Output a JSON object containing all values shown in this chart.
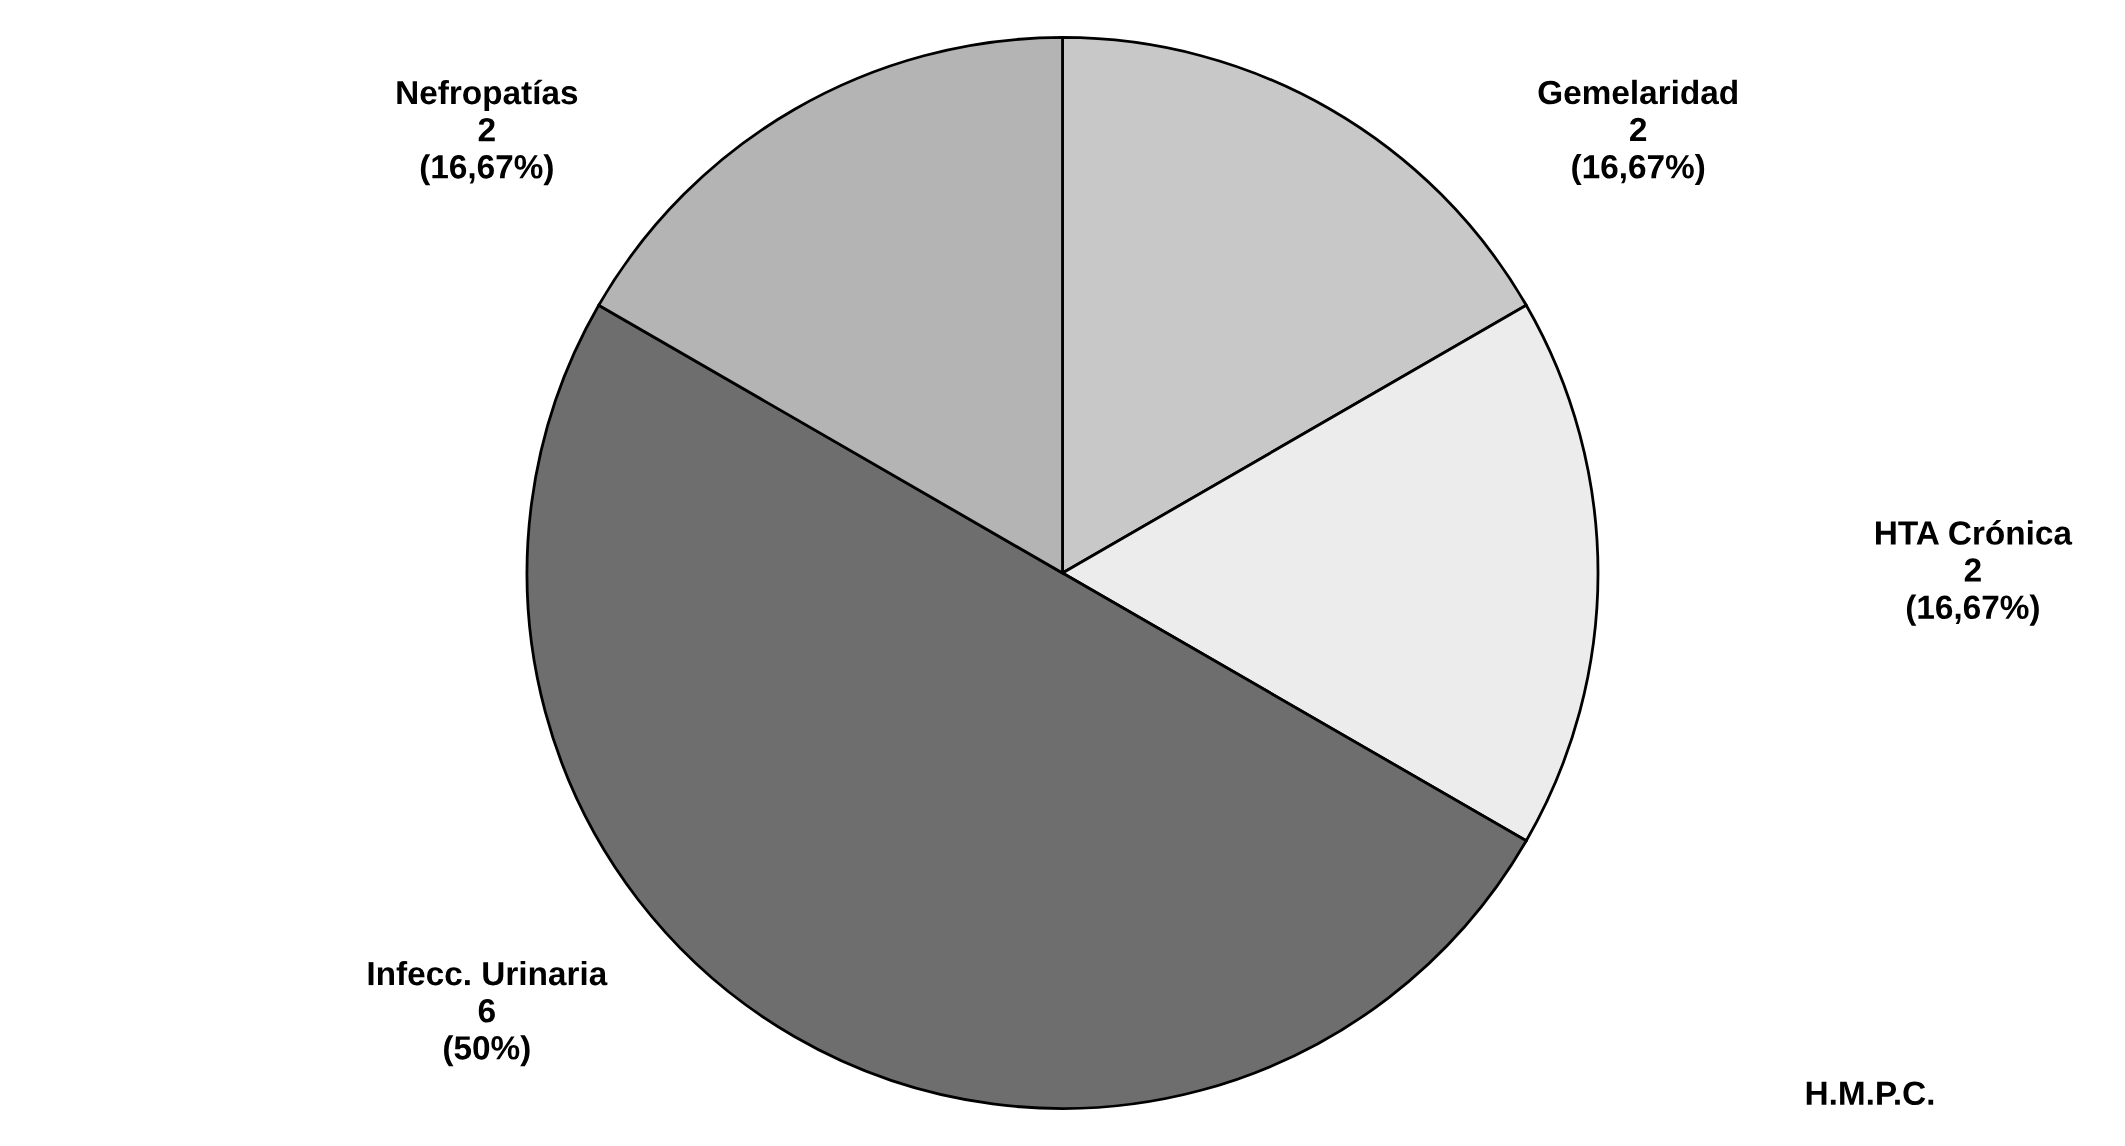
{
  "chart_data": {
    "type": "pie",
    "categories": [
      "Gemelaridad",
      "HTA Crónica",
      "Infecc. Urinaria",
      "Nefropatías"
    ],
    "values": [
      2,
      2,
      6,
      2
    ],
    "value_labels": [
      "2\n(16,67%)",
      "2\n(16,67%)",
      "6\n(50%)",
      "2\n(16,67%)"
    ],
    "colors": [
      "#c8c8c8",
      "#ececec",
      "#6e6e6e",
      "#b4b4b4"
    ],
    "annotations": [
      "H.M.P.C."
    ]
  }
}
